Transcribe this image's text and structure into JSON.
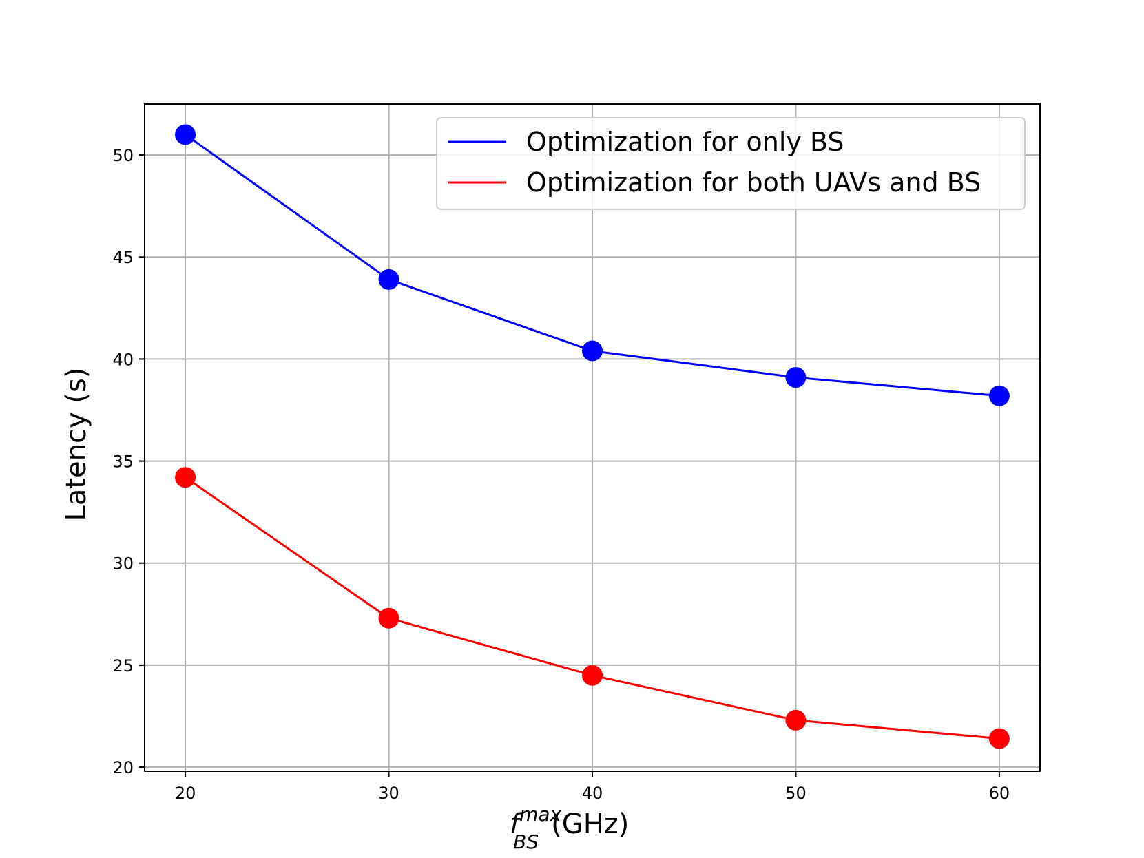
{
  "chart_data": {
    "type": "line",
    "title": "",
    "xlabel": {
      "main": "f",
      "sub": "BS",
      "sup": "max",
      "unit": "(GHz)"
    },
    "ylabel": "Latency (s)",
    "x": [
      20,
      30,
      40,
      50,
      60
    ],
    "xlim": [
      18,
      62
    ],
    "ylim": [
      19.8,
      52.5
    ],
    "xticks": [
      20,
      30,
      40,
      50,
      60
    ],
    "yticks": [
      20,
      25,
      30,
      35,
      40,
      45,
      50
    ],
    "grid": true,
    "legend_position": "top-right",
    "series": [
      {
        "name": "Optimization for only BS",
        "color": "#0000ff",
        "marker": "circle",
        "values": [
          51.0,
          43.9,
          40.4,
          39.1,
          38.2
        ]
      },
      {
        "name": "Optimization for both UAVs and BS",
        "color": "#ff0000",
        "marker": "circle",
        "values": [
          34.2,
          27.3,
          24.5,
          22.3,
          21.4
        ]
      }
    ]
  }
}
